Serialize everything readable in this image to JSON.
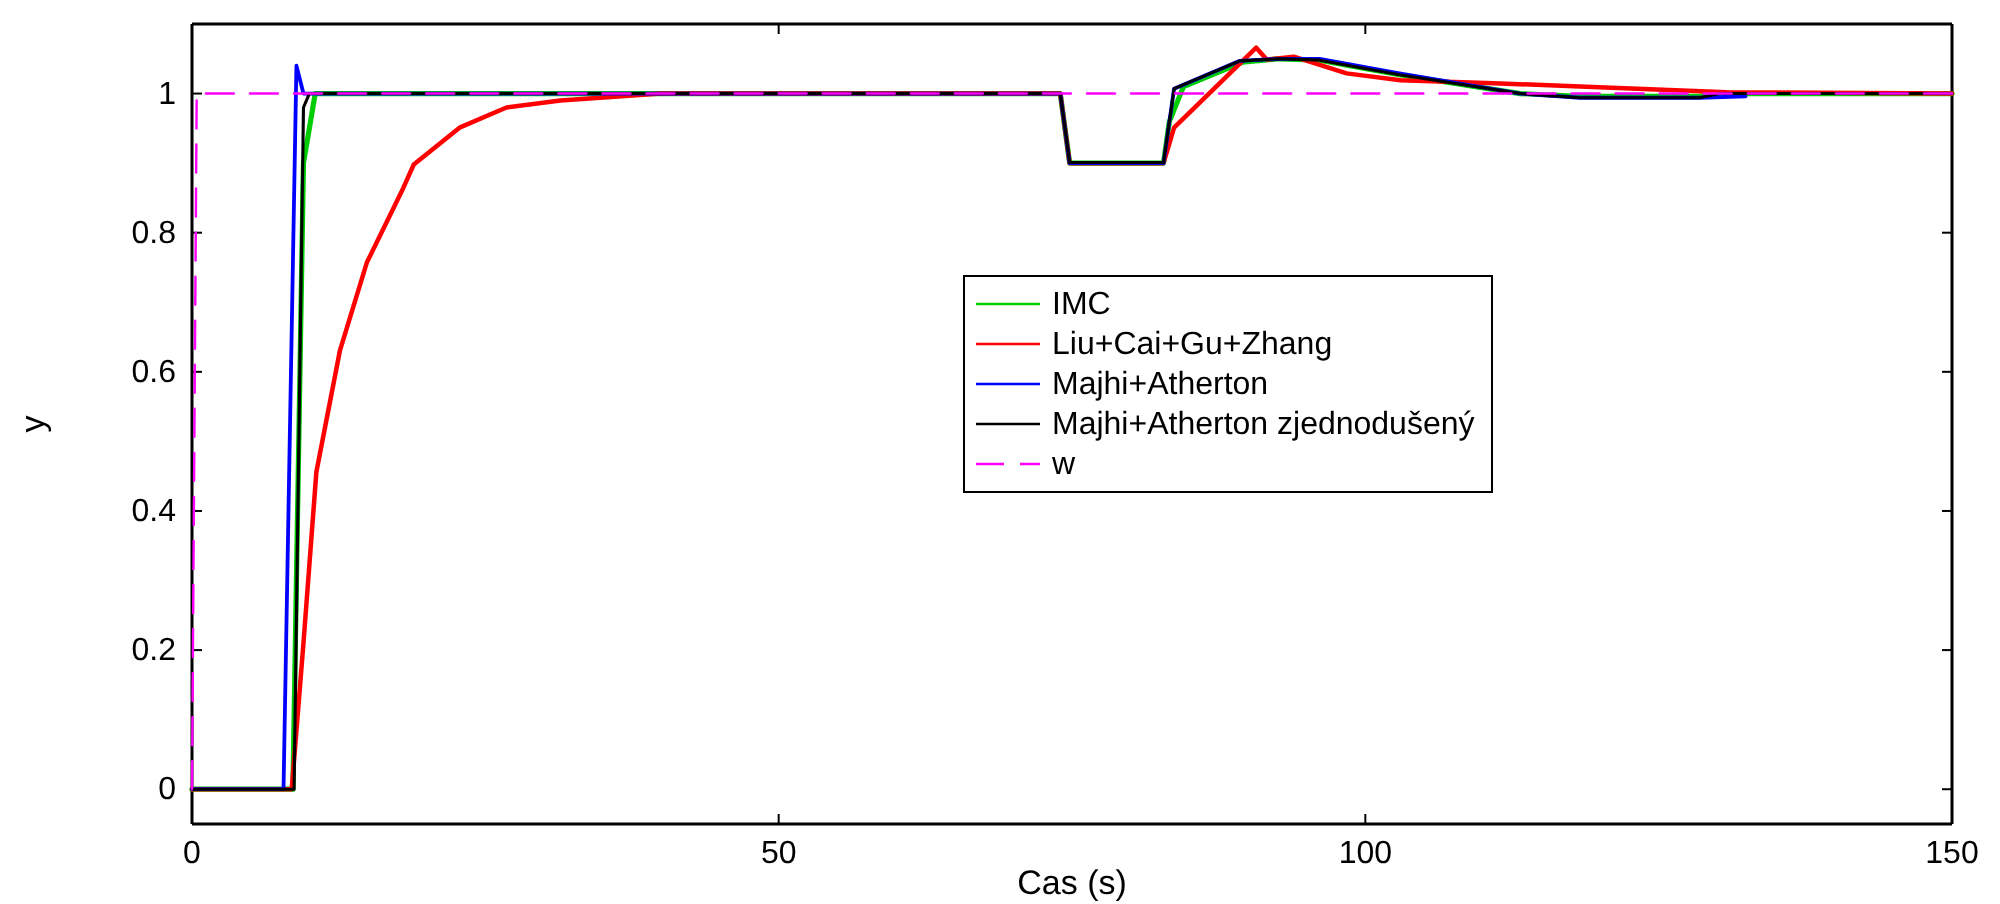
{
  "chart_data": {
    "type": "line",
    "xlabel": "Cas (s)",
    "ylabel": "y",
    "xlim": [
      0,
      150
    ],
    "ylim": [
      -0.05,
      1.1
    ],
    "xticks": [
      0,
      50,
      100,
      150
    ],
    "yticks": [
      0,
      0.2,
      0.4,
      0.6,
      0.8,
      1
    ],
    "grid": false,
    "legend": "right",
    "line_style": "solid",
    "marker": "none",
    "series": [
      {
        "name": "IMC",
        "color": "#00cc00",
        "x": [
          0,
          8.6,
          9.5,
          10.5,
          74,
          74.8,
          82.8,
          83.3,
          84.5,
          89.5,
          92.7,
          96.1,
          102.9,
          113.2,
          118.3,
          128.5,
          130.2,
          150
        ],
        "values": [
          0,
          0,
          0.9,
          1,
          1,
          0.9,
          0.9,
          0.96,
          1.01,
          1.045,
          1.05,
          1.048,
          1.027,
          1.0,
          0.996,
          0.996,
          1,
          1
        ]
      },
      {
        "name": "Liu+Cai+Gu+Zhang",
        "color": "#ff0000",
        "x": [
          0,
          8.5,
          9.5,
          10.6,
          12.6,
          14.9,
          18,
          18.9,
          22.8,
          26.8,
          31.4,
          40,
          74,
          74.8,
          82.8,
          83.7,
          90.7,
          91.6,
          93.9,
          98.4,
          103,
          110.9,
          118.3,
          130.8,
          150
        ],
        "values": [
          0,
          0,
          0.21,
          0.456,
          0.63,
          0.757,
          0.864,
          0.898,
          0.951,
          0.98,
          0.99,
          1,
          1,
          0.9,
          0.9,
          0.951,
          1.066,
          1.049,
          1.053,
          1.029,
          1.019,
          1.015,
          1.01,
          1.002,
          1
        ]
      },
      {
        "name": "Majhi+Atherton",
        "color": "#0000ff",
        "x": [
          0,
          7.8,
          8.9,
          9.5,
          74,
          74.8,
          82.8,
          83.7,
          89.3,
          92.7,
          96.1,
          102.9,
          113.2,
          118.3,
          128.5,
          132.4
        ],
        "values": [
          0,
          0,
          1.04,
          1,
          1,
          0.9,
          0.9,
          1.007,
          1.047,
          1.05,
          1.05,
          1.029,
          1.0,
          0.994,
          0.994,
          0.996
        ]
      },
      {
        "name": "Majhi+Atherton zjednodušený",
        "color": "#000000",
        "x": [
          0,
          8.7,
          9.5,
          10,
          74,
          74.8,
          82.8,
          83.7,
          89.3,
          92.7,
          96.1,
          102.9,
          113.2,
          118.3,
          128.5,
          130.2,
          150
        ],
        "values": [
          0,
          0,
          0.98,
          1,
          1,
          0.901,
          0.901,
          1.007,
          1.047,
          1.05,
          1.048,
          1.027,
          1.0,
          0.994,
          0.994,
          1,
          1
        ]
      },
      {
        "name": "w",
        "color": "#ff00ff",
        "line_style": "dashed",
        "x": [
          0,
          0.4,
          150
        ],
        "values": [
          0,
          1,
          1
        ]
      }
    ]
  }
}
